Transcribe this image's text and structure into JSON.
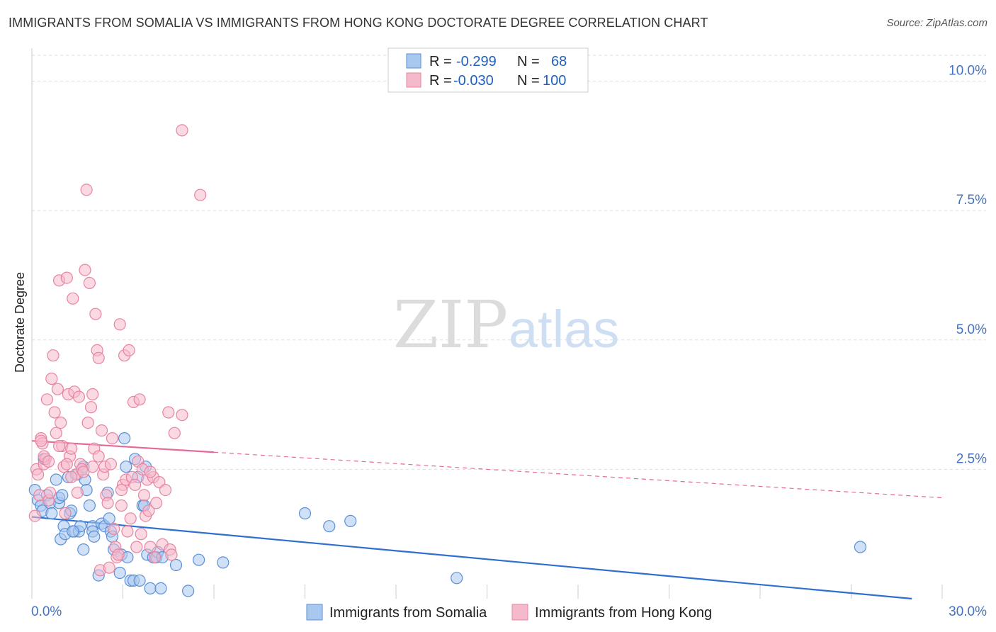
{
  "header": {
    "title": "IMMIGRANTS FROM SOMALIA VS IMMIGRANTS FROM HONG KONG DOCTORATE DEGREE CORRELATION CHART",
    "source": "Source: ZipAtlas.com"
  },
  "watermark": {
    "zip": "ZIP",
    "atlas": "atlas"
  },
  "colors": {
    "somalia_fill": "#a9c8f0",
    "somalia_stroke": "#5b8fd6",
    "somalia_line": "#2f6fd0",
    "hongkong_fill": "#f5b9cc",
    "hongkong_stroke": "#e8849f",
    "hongkong_line": "#e8679a",
    "grid": "#dddddd",
    "axis_text": "#4472c4"
  },
  "stats_legend": {
    "rows": [
      {
        "r_label": "R =",
        "r_value": "-0.299",
        "n_label": "N =",
        "n_value": "68"
      },
      {
        "r_label": "R =",
        "r_value": "-0.030",
        "n_label": "N =",
        "n_value": "100"
      }
    ]
  },
  "chart_data": {
    "type": "scatter",
    "title": "IMMIGRANTS FROM SOMALIA VS IMMIGRANTS FROM HONG KONG DOCTORATE DEGREE CORRELATION CHART",
    "xlabel": "",
    "ylabel": "Doctorate Degree",
    "xlim": [
      0,
      30
    ],
    "ylim": [
      0,
      10.5
    ],
    "x_tick_labels": [
      "0.0%",
      "30.0%"
    ],
    "y_ticks": [
      {
        "value": 2.5,
        "label": "2.5%"
      },
      {
        "value": 5.0,
        "label": "5.0%"
      },
      {
        "value": 7.5,
        "label": "7.5%"
      },
      {
        "value": 10.0,
        "label": "10.0%"
      }
    ],
    "series": [
      {
        "name": "Immigrants from Somalia",
        "color_key": "somalia",
        "trend": {
          "x0": 0,
          "y0": 1.58,
          "x1": 29.0,
          "y1": 0.0,
          "solid_until": 29.0
        },
        "points": [
          [
            0.1,
            2.1
          ],
          [
            0.2,
            1.9
          ],
          [
            0.3,
            1.8
          ],
          [
            0.35,
            1.7
          ],
          [
            0.4,
            2.7
          ],
          [
            0.5,
            2.0
          ],
          [
            0.6,
            1.85
          ],
          [
            0.65,
            1.65
          ],
          [
            0.8,
            2.3
          ],
          [
            0.9,
            1.85
          ],
          [
            0.9,
            1.95
          ],
          [
            0.95,
            1.15
          ],
          [
            1.0,
            2.0
          ],
          [
            1.05,
            1.4
          ],
          [
            1.1,
            1.25
          ],
          [
            1.2,
            2.35
          ],
          [
            1.25,
            1.65
          ],
          [
            1.3,
            1.7
          ],
          [
            1.4,
            1.3
          ],
          [
            1.5,
            2.4
          ],
          [
            1.55,
            1.3
          ],
          [
            1.6,
            1.4
          ],
          [
            1.7,
            2.55
          ],
          [
            1.7,
            0.95
          ],
          [
            1.75,
            2.3
          ],
          [
            1.8,
            2.1
          ],
          [
            1.9,
            1.8
          ],
          [
            2.0,
            1.4
          ],
          [
            2.0,
            1.3
          ],
          [
            2.05,
            1.2
          ],
          [
            2.2,
            0.45
          ],
          [
            2.3,
            1.45
          ],
          [
            2.4,
            1.4
          ],
          [
            2.5,
            2.05
          ],
          [
            2.55,
            1.55
          ],
          [
            2.6,
            1.3
          ],
          [
            2.65,
            1.2
          ],
          [
            2.7,
            0.95
          ],
          [
            2.9,
            0.5
          ],
          [
            2.95,
            0.85
          ],
          [
            3.05,
            3.1
          ],
          [
            3.1,
            2.55
          ],
          [
            3.15,
            0.8
          ],
          [
            3.25,
            0.35
          ],
          [
            3.35,
            0.35
          ],
          [
            3.4,
            2.7
          ],
          [
            3.5,
            2.35
          ],
          [
            3.55,
            0.35
          ],
          [
            3.65,
            1.8
          ],
          [
            3.7,
            1.8
          ],
          [
            3.75,
            2.55
          ],
          [
            3.8,
            0.85
          ],
          [
            3.9,
            0.2
          ],
          [
            4.0,
            0.8
          ],
          [
            4.1,
            0.8
          ],
          [
            4.15,
            0.9
          ],
          [
            4.25,
            0.2
          ],
          [
            4.3,
            0.8
          ],
          [
            4.75,
            0.65
          ],
          [
            5.15,
            0.15
          ],
          [
            5.5,
            0.75
          ],
          [
            6.3,
            0.7
          ],
          [
            9.0,
            1.65
          ],
          [
            9.8,
            1.4
          ],
          [
            10.5,
            1.5
          ],
          [
            14.0,
            0.4
          ],
          [
            27.3,
            1.0
          ],
          [
            1.35,
            1.3
          ]
        ]
      },
      {
        "name": "Immigrants from Hong Kong",
        "color_key": "hongkong",
        "trend": {
          "x0": 0,
          "y0": 3.05,
          "x1": 30.0,
          "y1": 1.95,
          "solid_until": 6.0
        },
        "points": [
          [
            0.1,
            1.6
          ],
          [
            0.15,
            2.5
          ],
          [
            0.2,
            2.4
          ],
          [
            0.25,
            2.0
          ],
          [
            0.3,
            3.1
          ],
          [
            0.35,
            3.0
          ],
          [
            0.4,
            2.6
          ],
          [
            0.45,
            2.7
          ],
          [
            0.5,
            3.85
          ],
          [
            0.55,
            1.9
          ],
          [
            0.6,
            2.05
          ],
          [
            0.65,
            4.25
          ],
          [
            0.7,
            4.7
          ],
          [
            0.75,
            3.6
          ],
          [
            0.8,
            3.2
          ],
          [
            0.85,
            4.05
          ],
          [
            0.9,
            6.15
          ],
          [
            0.95,
            3.4
          ],
          [
            1.0,
            2.95
          ],
          [
            1.05,
            2.55
          ],
          [
            1.1,
            1.65
          ],
          [
            1.15,
            6.2
          ],
          [
            1.2,
            3.95
          ],
          [
            1.25,
            2.75
          ],
          [
            1.3,
            2.9
          ],
          [
            1.35,
            5.8
          ],
          [
            1.4,
            4.0
          ],
          [
            1.45,
            2.4
          ],
          [
            1.5,
            2.05
          ],
          [
            1.55,
            3.9
          ],
          [
            1.6,
            2.6
          ],
          [
            1.65,
            2.5
          ],
          [
            1.7,
            2.45
          ],
          [
            1.75,
            6.35
          ],
          [
            1.8,
            7.9
          ],
          [
            1.85,
            3.4
          ],
          [
            1.9,
            6.1
          ],
          [
            1.95,
            3.7
          ],
          [
            2.0,
            3.95
          ],
          [
            2.05,
            2.9
          ],
          [
            2.1,
            5.5
          ],
          [
            2.15,
            4.8
          ],
          [
            2.2,
            4.65
          ],
          [
            2.25,
            0.55
          ],
          [
            2.3,
            3.25
          ],
          [
            2.35,
            2.4
          ],
          [
            2.4,
            2.55
          ],
          [
            2.45,
            2.0
          ],
          [
            2.5,
            1.85
          ],
          [
            2.55,
            0.6
          ],
          [
            2.6,
            2.6
          ],
          [
            2.65,
            3.1
          ],
          [
            2.7,
            1.35
          ],
          [
            2.75,
            1.0
          ],
          [
            2.8,
            0.8
          ],
          [
            2.85,
            0.85
          ],
          [
            2.9,
            5.3
          ],
          [
            2.95,
            1.8
          ],
          [
            3.0,
            2.2
          ],
          [
            3.05,
            4.7
          ],
          [
            3.1,
            2.3
          ],
          [
            3.15,
            1.3
          ],
          [
            3.2,
            4.8
          ],
          [
            3.25,
            1.55
          ],
          [
            3.3,
            2.35
          ],
          [
            3.35,
            3.8
          ],
          [
            3.4,
            2.2
          ],
          [
            3.45,
            1.0
          ],
          [
            3.5,
            2.65
          ],
          [
            3.55,
            3.85
          ],
          [
            3.6,
            1.25
          ],
          [
            3.65,
            2.5
          ],
          [
            3.7,
            2.0
          ],
          [
            3.75,
            1.6
          ],
          [
            3.8,
            2.3
          ],
          [
            3.85,
            1.7
          ],
          [
            3.9,
            1.0
          ],
          [
            4.0,
            2.35
          ],
          [
            4.05,
            0.8
          ],
          [
            4.1,
            1.85
          ],
          [
            4.2,
            2.25
          ],
          [
            4.3,
            1.05
          ],
          [
            4.4,
            2.1
          ],
          [
            4.5,
            3.6
          ],
          [
            4.55,
            0.95
          ],
          [
            4.6,
            0.85
          ],
          [
            4.7,
            3.2
          ],
          [
            4.95,
            3.55
          ],
          [
            4.95,
            9.05
          ],
          [
            5.55,
            7.8
          ],
          [
            0.3,
            3.05
          ],
          [
            0.4,
            2.75
          ],
          [
            0.55,
            2.65
          ],
          [
            0.9,
            2.95
          ],
          [
            1.15,
            2.6
          ],
          [
            1.3,
            2.35
          ],
          [
            2.0,
            2.55
          ],
          [
            2.2,
            2.75
          ],
          [
            2.95,
            2.1
          ],
          [
            3.9,
            2.45
          ]
        ]
      }
    ]
  },
  "bottom_legend": {
    "items": [
      {
        "label": "Immigrants from Somalia"
      },
      {
        "label": "Immigrants from Hong Kong"
      }
    ]
  }
}
